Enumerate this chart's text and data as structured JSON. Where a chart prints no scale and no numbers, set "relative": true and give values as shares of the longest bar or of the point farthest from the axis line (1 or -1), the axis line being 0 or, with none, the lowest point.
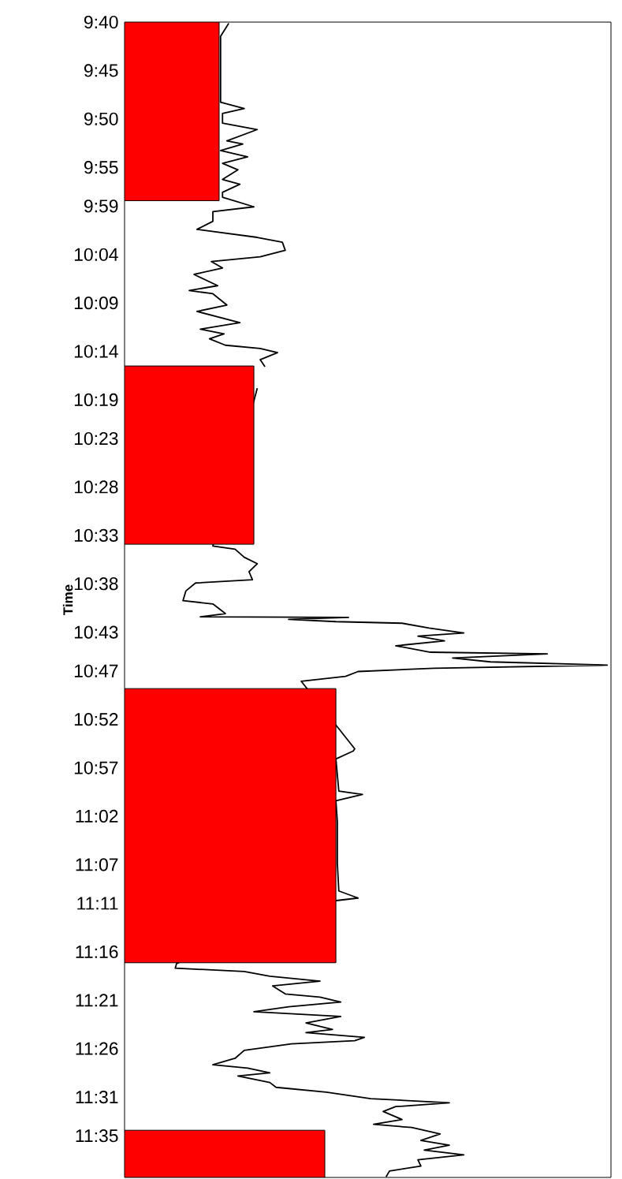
{
  "chart_data": {
    "type": "line",
    "orientation": "horizontal",
    "relative": true,
    "ylabel": "Time",
    "tick_labels": "y",
    "ylim": [
      11.655,
      9.6667
    ],
    "yticks": [
      {
        "value": 9.6667,
        "label": "9:40"
      },
      {
        "value": 9.75,
        "label": "9:45"
      },
      {
        "value": 9.8333,
        "label": "9:50"
      },
      {
        "value": 9.9167,
        "label": "9:55"
      },
      {
        "value": 9.9833,
        "label": "9:59"
      },
      {
        "value": 10.0667,
        "label": "10:04"
      },
      {
        "value": 10.15,
        "label": "10:09"
      },
      {
        "value": 10.2333,
        "label": "10:14"
      },
      {
        "value": 10.3167,
        "label": "10:19"
      },
      {
        "value": 10.3833,
        "label": "10:23"
      },
      {
        "value": 10.4667,
        "label": "10:28"
      },
      {
        "value": 10.55,
        "label": "10:33"
      },
      {
        "value": 10.6333,
        "label": "10:38"
      },
      {
        "value": 10.7167,
        "label": "10:43"
      },
      {
        "value": 10.7833,
        "label": "10:47"
      },
      {
        "value": 10.8667,
        "label": "10:52"
      },
      {
        "value": 10.95,
        "label": "10:57"
      },
      {
        "value": 11.0333,
        "label": "11:02"
      },
      {
        "value": 11.1167,
        "label": "11:07"
      },
      {
        "value": 11.1833,
        "label": "11:11"
      },
      {
        "value": 11.2667,
        "label": "11:16"
      },
      {
        "value": 11.35,
        "label": "11:21"
      },
      {
        "value": 11.4333,
        "label": "11:26"
      },
      {
        "value": 11.5167,
        "label": "11:31"
      },
      {
        "value": 11.5833,
        "label": "11:35"
      }
    ],
    "series": [
      {
        "type": "area",
        "color": "#ff0000",
        "x": [
          9.6667,
          9.974,
          10.1,
          10.2585,
          10.5653,
          10.7,
          10.8137,
          11.2855,
          11.4,
          11.5738,
          11.655
        ],
        "values": [
          0.196,
          0.196,
          null,
          0.268,
          0.268,
          null,
          0.438,
          0.438,
          null,
          0.415,
          0.415
        ]
      },
      {
        "color": "#000000",
        "x": [
          9.6688,
          9.691,
          9.7325,
          9.8045,
          9.8156,
          9.8239,
          9.8406,
          9.8516,
          9.871,
          9.8766,
          9.8876,
          9.8987,
          9.9098,
          9.9209,
          9.9375,
          9.9458,
          9.9597,
          9.968,
          9.9846,
          9.9929,
          10.0095,
          10.0234,
          10.0372,
          10.0455,
          10.0594,
          10.0705,
          10.0788,
          10.0899,
          10.1009,
          10.1203,
          10.1286,
          10.1342,
          10.1536,
          10.1646,
          10.184,
          10.1951,
          10.2034,
          10.2117,
          10.2228,
          10.2283,
          10.2355,
          10.2477,
          10.2599,
          10.2633,
          10.2968,
          10.319,
          10.5683,
          10.5738,
          10.5877,
          10.5988,
          10.6126,
          10.6265,
          10.632,
          10.6458,
          10.6624,
          10.668,
          10.6846,
          10.6902,
          10.6913,
          10.6946,
          10.6985,
          10.7012,
          10.7096,
          10.7179,
          10.7234,
          10.7317,
          10.74,
          10.7511,
          10.7539,
          10.7611,
          10.7677,
          10.7733,
          10.7788,
          10.7843,
          10.7926,
          10.801,
          10.9173,
          10.921,
          10.9348,
          10.9902,
          10.9958,
          11.0068,
          11.0429,
          11.1149,
          11.162,
          11.1742,
          11.1786,
          11.2866,
          11.2949,
          11.3005,
          11.3088,
          11.3171,
          11.3254,
          11.3392,
          11.3448,
          11.3531,
          11.3614,
          11.3697,
          11.378,
          11.3891,
          11.4002,
          11.4057,
          11.414,
          11.4196,
          11.4251,
          11.4362,
          11.45,
          11.4611,
          11.4667,
          11.475,
          11.4805,
          11.4916,
          11.4999,
          11.5082,
          11.5193,
          11.5265,
          11.5331,
          11.5415,
          11.5553,
          11.5636,
          11.5691,
          11.5802,
          11.5913,
          11.5996,
          11.6079,
          11.6162,
          11.6246,
          11.6356,
          11.6439,
          11.654
        ],
        "values": [
          0.216,
          0.199,
          0.199,
          0.199,
          0.248,
          0.203,
          0.203,
          0.275,
          0.212,
          0.245,
          0.199,
          0.255,
          0.203,
          0.235,
          0.203,
          0.239,
          0.203,
          0.203,
          0.268,
          0.183,
          0.183,
          0.15,
          0.275,
          0.327,
          0.333,
          0.281,
          0.18,
          0.203,
          0.144,
          0.193,
          0.134,
          0.183,
          0.212,
          0.15,
          0.239,
          0.157,
          0.206,
          0.176,
          0.209,
          0.281,
          0.317,
          0.281,
          0.291,
          null,
          0.275,
          0.268,
          0.183,
          0.229,
          0.248,
          0.275,
          0.258,
          0.265,
          0.147,
          0.127,
          0.121,
          0.183,
          0.209,
          0.157,
          0.464,
          0.34,
          0.438,
          0.575,
          0.631,
          0.703,
          0.608,
          0.663,
          0.562,
          0.634,
          0.876,
          0.68,
          0.758,
          1,
          0.641,
          0.484,
          0.458,
          0.366,
          0.477,
          0.474,
          0.438,
          0.444,
          0.493,
          0.438,
          0.441,
          0.441,
          0.444,
          0.484,
          0.438,
          0.108,
          0.105,
          0.248,
          0.301,
          0.405,
          0.307,
          0.333,
          0.405,
          0.448,
          0.34,
          0.268,
          0.448,
          0.376,
          0.431,
          0.376,
          0.497,
          0.477,
          0.346,
          0.248,
          0.229,
          0.183,
          0.255,
          0.301,
          0.235,
          0.301,
          0.314,
          0.418,
          0.51,
          0.673,
          0.562,
          0.536,
          0.575,
          0.516,
          0.595,
          0.654,
          0.614,
          0.673,
          0.621,
          0.703,
          0.608,
          0.614,
          0.549,
          0.542
        ]
      }
    ]
  }
}
